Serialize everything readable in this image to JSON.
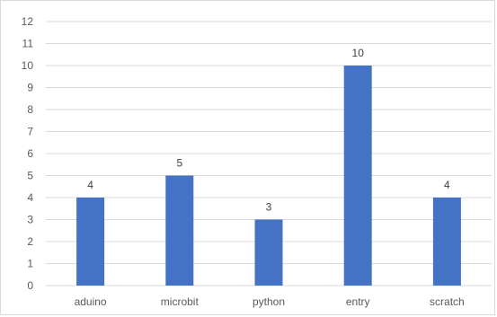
{
  "chart_data": {
    "type": "bar",
    "title": "",
    "xlabel": "",
    "ylabel": "",
    "categories": [
      "aduino",
      "microbit",
      "python",
      "entry",
      "scratch"
    ],
    "values": [
      4,
      5,
      3,
      10,
      4
    ],
    "ylim": [
      0,
      12
    ],
    "y_ticks": [
      0,
      1,
      2,
      3,
      4,
      5,
      6,
      7,
      8,
      9,
      10,
      11,
      12
    ],
    "grid": true,
    "legend": "none",
    "data_labels": true,
    "colors": {
      "bar": "#4472C4"
    }
  }
}
